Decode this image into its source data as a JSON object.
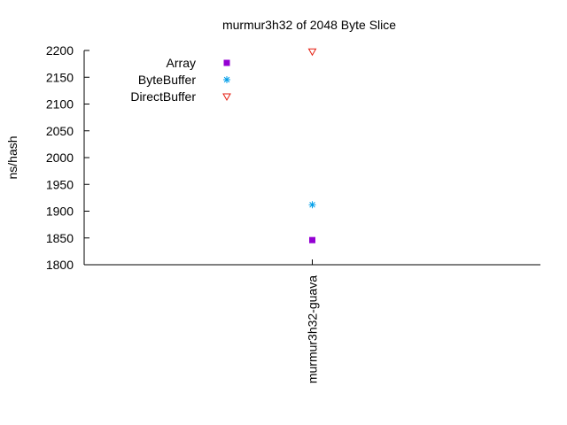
{
  "chart_data": {
    "type": "scatter",
    "title": "murmur3h32 of 2048 Byte Slice",
    "xlabel": "",
    "ylabel": "ns/hash",
    "categories": [
      "murmur3h32-guava"
    ],
    "ylim": [
      1800,
      2200
    ],
    "yticks": [
      1800,
      1850,
      1900,
      1950,
      2000,
      2050,
      2100,
      2150,
      2200
    ],
    "grid": false,
    "legend_position": "top-left",
    "series": [
      {
        "name": "Array",
        "values": [
          1846
        ],
        "color": "#9400d3",
        "marker": "filled-square"
      },
      {
        "name": "ByteBuffer",
        "values": [
          1912
        ],
        "color": "#009ee9",
        "marker": "asterisk"
      },
      {
        "name": "DirectBuffer",
        "values": [
          2198
        ],
        "color": "#e51e10",
        "marker": "open-triangle-down"
      }
    ]
  }
}
